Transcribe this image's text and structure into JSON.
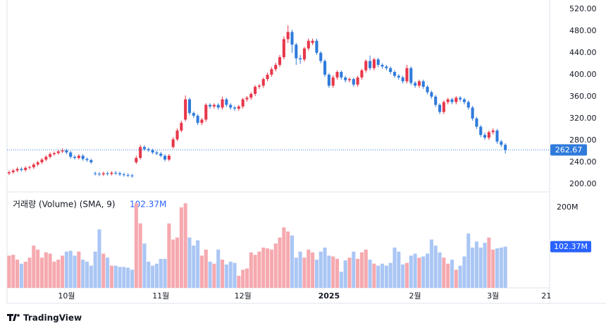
{
  "chart_data": {
    "type": "candlestick",
    "brand": "TradingView",
    "volume_title": "거래량 (Volume) (SMA, 9)",
    "last_volume": {
      "value": 102.37,
      "label": "102.37M"
    },
    "up_color": "#e8374a",
    "down_color": "#2f7bdb",
    "volume_up_color": "#f5a9af",
    "volume_down_color": "#aac6f4",
    "xlim": [
      -0.5,
      131.8
    ],
    "xticks": [
      {
        "value": 14,
        "label": "10월"
      },
      {
        "value": 37,
        "label": "11월"
      },
      {
        "value": 57,
        "label": "12월"
      },
      {
        "value": 78,
        "label": "2025"
      },
      {
        "value": 99,
        "label": "2월"
      },
      {
        "value": 118,
        "label": "3월"
      },
      {
        "value": 131,
        "label": "21"
      }
    ],
    "ylim": [
      186,
      530
    ],
    "yticks": [
      {
        "value": 520,
        "label": "520.00"
      },
      {
        "value": 480,
        "label": "480.00"
      },
      {
        "value": 440,
        "label": "440.00"
      },
      {
        "value": 400,
        "label": "400.00"
      },
      {
        "value": 360,
        "label": "360.00"
      },
      {
        "value": 320,
        "label": "320.00"
      },
      {
        "value": 280,
        "label": "280.00"
      },
      {
        "value": 240,
        "label": "240.00"
      },
      {
        "value": 200,
        "label": "200.00"
      }
    ],
    "y2lim": [
      0,
      233
    ],
    "y2ticks": [
      {
        "value": 200,
        "label": "200M"
      }
    ],
    "open": [
      220,
      222,
      225,
      228,
      226,
      230,
      231,
      236,
      240,
      245,
      250,
      255,
      257,
      260,
      262,
      258,
      250,
      248,
      252,
      246,
      244,
      220,
      219,
      218,
      220,
      219,
      221,
      220,
      218,
      217,
      216,
      240,
      248,
      268,
      264,
      262,
      258,
      256,
      252,
      245,
      268,
      282,
      298,
      318,
      355,
      330,
      325,
      312,
      318,
      345,
      342,
      345,
      340,
      355,
      345,
      340,
      338,
      342,
      355,
      358,
      365,
      378,
      380,
      392,
      400,
      410,
      418,
      432,
      465,
      478,
      455,
      430,
      428,
      448,
      458,
      462,
      440,
      425,
      400,
      380,
      395,
      405,
      395,
      390,
      392,
      382,
      395,
      408,
      425,
      412,
      428,
      418,
      415,
      412,
      405,
      398,
      395,
      388,
      412,
      385,
      380,
      388,
      378,
      368,
      360,
      345,
      332,
      350,
      355,
      350,
      358,
      355,
      350,
      340,
      320,
      305,
      290,
      285,
      295,
      298,
      278,
      272
    ],
    "high": [
      225,
      228,
      231,
      231,
      233,
      234,
      239,
      243,
      248,
      253,
      258,
      260,
      263,
      266,
      265,
      261,
      253,
      255,
      255,
      249,
      247,
      223,
      222,
      223,
      223,
      224,
      224,
      223,
      221,
      220,
      219,
      252,
      272,
      271,
      267,
      265,
      261,
      259,
      255,
      255,
      286,
      302,
      316,
      362,
      358,
      333,
      328,
      321,
      348,
      348,
      348,
      348,
      360,
      358,
      348,
      343,
      345,
      358,
      361,
      368,
      381,
      383,
      395,
      404,
      414,
      422,
      436,
      470,
      490,
      482,
      458,
      436,
      451,
      466,
      466,
      466,
      443,
      428,
      403,
      399,
      408,
      408,
      398,
      395,
      395,
      398,
      411,
      428,
      435,
      431,
      431,
      421,
      418,
      415,
      408,
      401,
      398,
      418,
      415,
      388,
      391,
      391,
      381,
      371,
      363,
      348,
      353,
      358,
      358,
      361,
      361,
      358,
      353,
      343,
      323,
      308,
      294,
      298,
      302,
      301,
      281,
      275
    ],
    "low": [
      217,
      219,
      222,
      223,
      223,
      227,
      228,
      233,
      237,
      242,
      247,
      252,
      254,
      257,
      255,
      247,
      245,
      245,
      243,
      241,
      237,
      216,
      215,
      215,
      216,
      216,
      217,
      215,
      214,
      213,
      212,
      237,
      245,
      261,
      259,
      255,
      253,
      249,
      242,
      242,
      265,
      279,
      295,
      315,
      326,
      321,
      308,
      308,
      314,
      338,
      338,
      336,
      336,
      341,
      336,
      334,
      334,
      338,
      351,
      354,
      361,
      374,
      376,
      388,
      396,
      406,
      414,
      428,
      458,
      440,
      418,
      420,
      424,
      444,
      454,
      436,
      421,
      396,
      376,
      376,
      391,
      391,
      386,
      386,
      378,
      378,
      391,
      404,
      408,
      408,
      414,
      411,
      408,
      401,
      394,
      391,
      384,
      384,
      381,
      376,
      376,
      374,
      364,
      356,
      341,
      328,
      328,
      346,
      346,
      346,
      351,
      346,
      336,
      316,
      301,
      286,
      281,
      281,
      291,
      274,
      268,
      256
    ],
    "close": [
      222,
      225,
      228,
      226,
      230,
      231,
      236,
      240,
      245,
      250,
      255,
      257,
      260,
      262,
      258,
      250,
      248,
      252,
      246,
      244,
      240,
      219,
      218,
      220,
      219,
      221,
      220,
      218,
      217,
      216,
      215,
      248,
      268,
      264,
      262,
      258,
      256,
      252,
      245,
      252,
      282,
      298,
      312,
      355,
      330,
      325,
      312,
      318,
      345,
      342,
      345,
      340,
      355,
      345,
      340,
      338,
      342,
      355,
      358,
      365,
      378,
      380,
      392,
      400,
      410,
      418,
      432,
      465,
      478,
      455,
      430,
      428,
      448,
      462,
      462,
      440,
      425,
      400,
      380,
      395,
      405,
      395,
      390,
      392,
      382,
      395,
      408,
      425,
      412,
      428,
      418,
      415,
      412,
      405,
      398,
      395,
      388,
      412,
      385,
      380,
      388,
      378,
      368,
      360,
      345,
      332,
      350,
      355,
      350,
      358,
      355,
      350,
      340,
      320,
      305,
      290,
      285,
      295,
      298,
      278,
      272,
      262.67
    ],
    "volume": [
      80,
      82,
      70,
      60,
      65,
      75,
      105,
      95,
      75,
      88,
      85,
      65,
      70,
      80,
      90,
      92,
      80,
      90,
      70,
      65,
      55,
      90,
      145,
      85,
      75,
      55,
      55,
      52,
      52,
      50,
      45,
      210,
      160,
      110,
      65,
      55,
      60,
      72,
      72,
      160,
      120,
      125,
      200,
      210,
      125,
      105,
      118,
      80,
      95,
      65,
      60,
      95,
      70,
      58,
      65,
      62,
      30,
      45,
      48,
      88,
      82,
      90,
      100,
      98,
      95,
      110,
      125,
      150,
      140,
      130,
      75,
      90,
      75,
      95,
      88,
      70,
      90,
      100,
      80,
      78,
      72,
      40,
      68,
      75,
      90,
      72,
      88,
      95,
      70,
      60,
      55,
      60,
      55,
      62,
      100,
      90,
      58,
      62,
      80,
      85,
      75,
      78,
      85,
      120,
      105,
      88,
      75,
      60,
      70,
      45,
      55,
      78,
      135,
      100,
      115,
      100,
      112,
      125,
      95,
      98,
      100,
      102.37
    ]
  }
}
